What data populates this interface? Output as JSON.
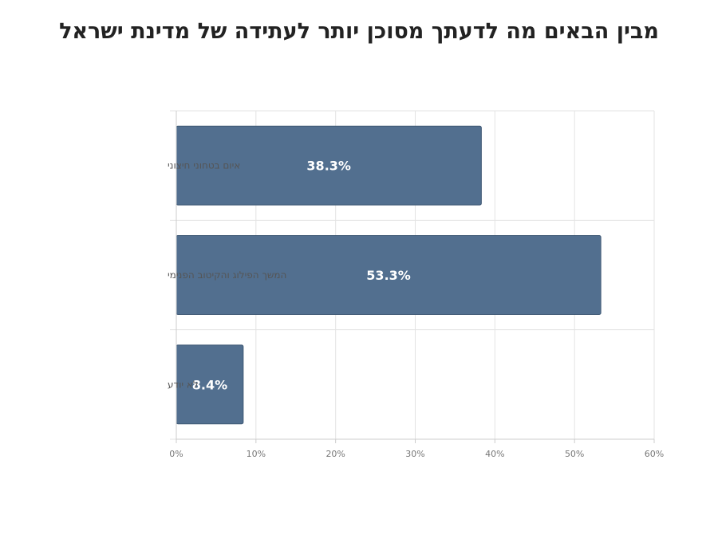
{
  "chart_data": {
    "type": "bar",
    "orientation": "horizontal",
    "title": "מבין הבאים מה לדעתך מסוכן יותר לעתידה של מדינת ישראל",
    "categories": [
      "איום בטחוני חיצוני",
      "המשך הפילוג והקיטוב הפנימי",
      "לא יודע"
    ],
    "values": [
      38.3,
      53.3,
      8.4
    ],
    "value_labels": [
      "38.3%",
      "53.3%",
      "8.4%"
    ],
    "xlim": [
      0,
      60
    ],
    "x_ticks": [
      "0%",
      "10%",
      "20%",
      "30%",
      "40%",
      "50%",
      "60%"
    ],
    "grid": true,
    "bar_color": "#526f8f"
  }
}
